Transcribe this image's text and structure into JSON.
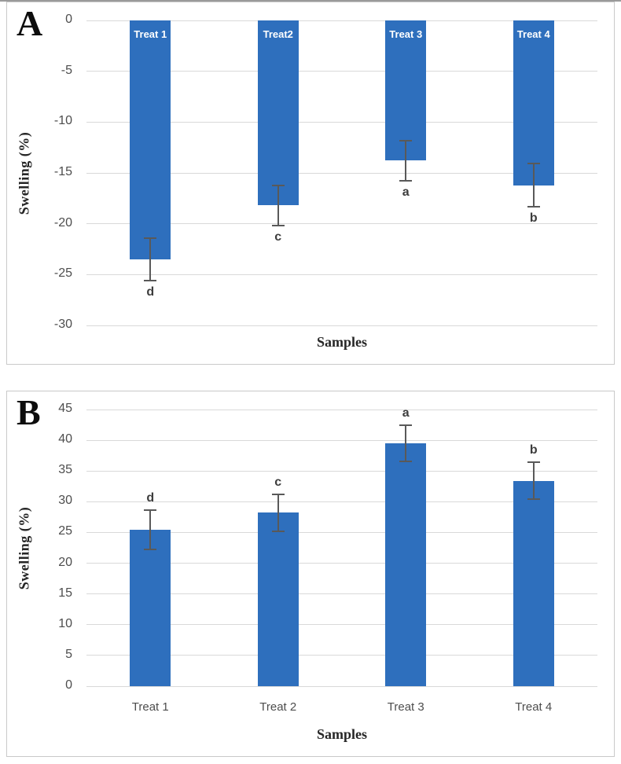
{
  "figure": {
    "panels": [
      "A",
      "B"
    ]
  },
  "colors": {
    "bar_fill": "#2e6fbd",
    "error_bar": "#595959",
    "gridline": "#d9d9d9",
    "tick_text": "#4d4d4d",
    "axis_title_text": "#262626",
    "panel_border": "#c9c9c9"
  },
  "chart_data": [
    {
      "id": "a",
      "type": "bar",
      "panel_label": "A",
      "xlabel": "Samples",
      "ylabel": "Swelling (%)",
      "ylim": [
        -30,
        0
      ],
      "yticks": [
        0,
        -5,
        -10,
        -15,
        -20,
        -25,
        -30
      ],
      "grid": true,
      "legend": "none",
      "categories": [
        "Treat 1",
        "Treat2",
        "Treat 3",
        "Treat 4"
      ],
      "values": [
        -23.5,
        -18.2,
        -13.8,
        -16.2
      ],
      "error_bars": [
        2.1,
        2.0,
        2.0,
        2.1
      ],
      "sig_letters": [
        "d",
        "c",
        "a",
        "b"
      ],
      "sig_letter_position": "below",
      "category_labels": "inside-bar-top",
      "bar_color": "#2e6fbd"
    },
    {
      "id": "b",
      "type": "bar",
      "panel_label": "B",
      "xlabel": "Samples",
      "ylabel": "Swelling (%)",
      "ylim": [
        0,
        45
      ],
      "yticks": [
        45,
        40,
        35,
        30,
        25,
        20,
        15,
        10,
        5,
        0
      ],
      "grid": true,
      "legend": "none",
      "categories": [
        "Treat 1",
        "Treat 2",
        "Treat 3",
        "Treat 4"
      ],
      "values": [
        25.4,
        28.2,
        39.5,
        33.4
      ],
      "error_bars": [
        3.2,
        3.0,
        3.0,
        3.0
      ],
      "sig_letters": [
        "d",
        "c",
        "a",
        "b"
      ],
      "sig_letter_position": "above",
      "category_labels": "below-axis",
      "bar_color": "#2e6fbd"
    }
  ]
}
